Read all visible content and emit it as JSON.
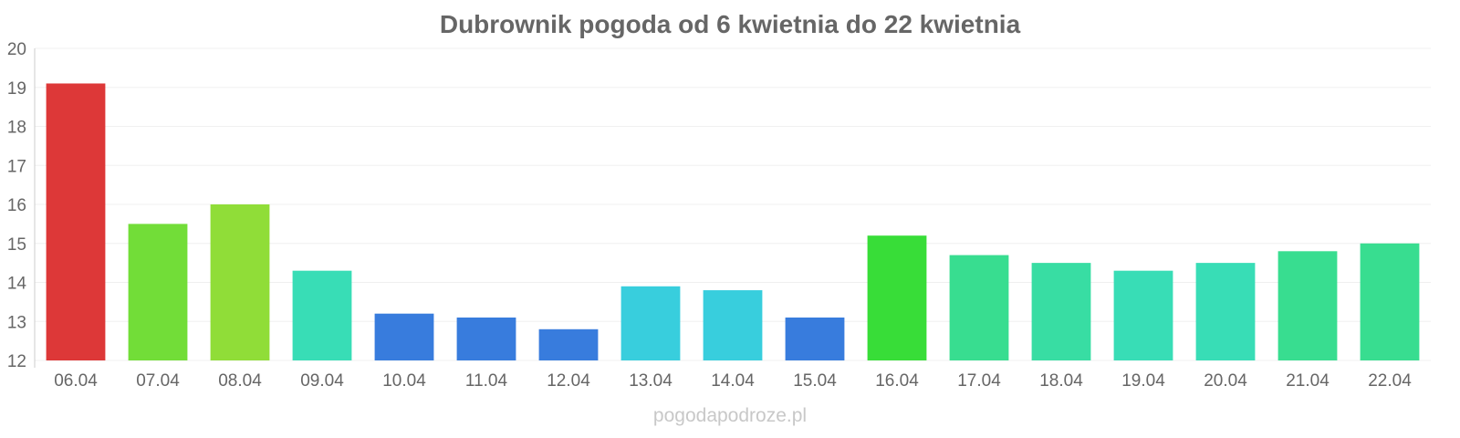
{
  "chart_data": {
    "type": "bar",
    "title": "Dubrownik pogoda od 6 kwietnia do 22 kwietnia",
    "categories": [
      "06.04",
      "07.04",
      "08.04",
      "09.04",
      "10.04",
      "11.04",
      "12.04",
      "13.04",
      "14.04",
      "15.04",
      "16.04",
      "17.04",
      "18.04",
      "19.04",
      "20.04",
      "21.04",
      "22.04"
    ],
    "values": [
      19.1,
      15.5,
      16.0,
      14.3,
      13.2,
      13.1,
      12.8,
      13.9,
      13.8,
      13.1,
      15.2,
      14.7,
      14.5,
      14.3,
      14.5,
      14.8,
      15.0
    ],
    "colors": [
      "#dc3232",
      "#6ddc32",
      "#8cdc32",
      "#32dcb4",
      "#3278dc",
      "#3278dc",
      "#3278dc",
      "#32ccdc",
      "#32ccdc",
      "#3278dc",
      "#32dc32",
      "#32dc8c",
      "#32dca0",
      "#32dcb4",
      "#32dcb4",
      "#32dc8c",
      "#32dc8c"
    ],
    "yticks": [
      "12",
      "13",
      "14",
      "15",
      "16",
      "17",
      "18",
      "19",
      "20"
    ],
    "ylim": [
      12,
      20
    ],
    "grid": true,
    "xlabel": "",
    "ylabel": ""
  },
  "watermark": "pogodapodroze.pl"
}
